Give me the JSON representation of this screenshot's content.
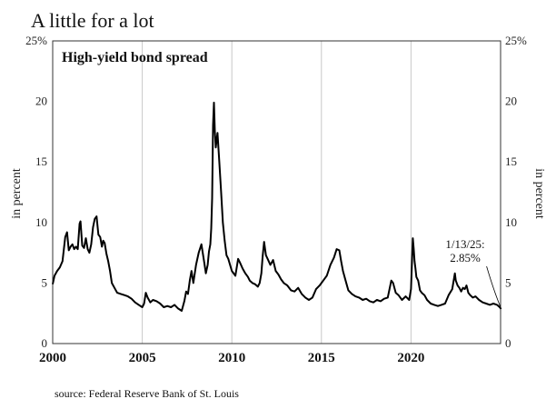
{
  "chart_data": {
    "type": "line",
    "title": "A little for a lot",
    "series_label": "High-yield bond spread",
    "ylabel_left": "in percent",
    "ylabel_right": "in percent",
    "xlim": [
      2000,
      2025
    ],
    "ylim": [
      0,
      25
    ],
    "y_ticks": [
      0,
      5,
      10,
      15,
      20,
      25
    ],
    "y_tick_labels": [
      "0",
      "5",
      "10",
      "15",
      "20",
      "25%"
    ],
    "x_ticks": [
      2000,
      2005,
      2010,
      2015,
      2020
    ],
    "x_tick_labels": [
      "2000",
      "2005",
      "2010",
      "2015",
      "2020"
    ],
    "grid": "vertical",
    "source": "source: Federal Reserve Bank of St. Louis",
    "annotation": {
      "line1": "1/13/25:",
      "line2": "2.85%",
      "x": 2025.03,
      "y": 2.85
    },
    "series": [
      {
        "name": "High-yield bond spread",
        "x": [
          2000.0,
          2000.1,
          2000.25,
          2000.4,
          2000.55,
          2000.7,
          2000.8,
          2000.9,
          2001.0,
          2001.1,
          2001.2,
          2001.3,
          2001.4,
          2001.5,
          2001.55,
          2001.65,
          2001.75,
          2001.85,
          2001.95,
          2002.05,
          2002.15,
          2002.25,
          2002.35,
          2002.45,
          2002.55,
          2002.65,
          2002.75,
          2002.82,
          2002.9,
          2003.0,
          2003.1,
          2003.2,
          2003.3,
          2003.45,
          2003.6,
          2003.8,
          2004.0,
          2004.2,
          2004.4,
          2004.6,
          2004.8,
          2005.0,
          2005.1,
          2005.2,
          2005.3,
          2005.45,
          2005.6,
          2005.8,
          2006.0,
          2006.2,
          2006.4,
          2006.6,
          2006.8,
          2007.0,
          2007.2,
          2007.35,
          2007.45,
          2007.55,
          2007.65,
          2007.75,
          2007.85,
          2008.0,
          2008.15,
          2008.3,
          2008.45,
          2008.55,
          2008.65,
          2008.72,
          2008.8,
          2008.85,
          2008.9,
          2008.95,
          2009.0,
          2009.05,
          2009.1,
          2009.2,
          2009.3,
          2009.4,
          2009.5,
          2009.6,
          2009.7,
          2009.8,
          2009.9,
          2010.0,
          2010.2,
          2010.35,
          2010.45,
          2010.6,
          2010.75,
          2010.9,
          2011.0,
          2011.15,
          2011.3,
          2011.45,
          2011.55,
          2011.65,
          2011.72,
          2011.8,
          2011.9,
          2012.0,
          2012.15,
          2012.3,
          2012.45,
          2012.6,
          2012.75,
          2012.9,
          2013.1,
          2013.3,
          2013.5,
          2013.7,
          2013.9,
          2014.1,
          2014.3,
          2014.5,
          2014.7,
          2014.9,
          2015.1,
          2015.3,
          2015.5,
          2015.7,
          2015.85,
          2016.0,
          2016.1,
          2016.2,
          2016.35,
          2016.5,
          2016.7,
          2016.9,
          2017.1,
          2017.3,
          2017.5,
          2017.7,
          2017.9,
          2018.1,
          2018.3,
          2018.5,
          2018.7,
          2018.9,
          2019.0,
          2019.15,
          2019.3,
          2019.5,
          2019.7,
          2019.9,
          2020.0,
          2020.1,
          2020.15,
          2020.2,
          2020.25,
          2020.3,
          2020.4,
          2020.5,
          2020.6,
          2020.75,
          2020.9,
          2021.1,
          2021.3,
          2021.5,
          2021.7,
          2021.9,
          2022.1,
          2022.3,
          2022.45,
          2022.5,
          2022.6,
          2022.7,
          2022.8,
          2022.9,
          2023.0,
          2023.1,
          2023.2,
          2023.3,
          2023.45,
          2023.6,
          2023.8,
          2024.0,
          2024.2,
          2024.4,
          2024.6,
          2024.8,
          2024.95,
          2025.03
        ],
        "values": [
          4.9,
          5.6,
          6.0,
          6.3,
          6.8,
          8.8,
          9.2,
          7.7,
          8.0,
          8.2,
          7.8,
          8.0,
          7.8,
          9.9,
          10.1,
          8.1,
          7.9,
          8.7,
          7.8,
          7.5,
          8.2,
          9.6,
          10.3,
          10.5,
          9.0,
          8.8,
          8.0,
          8.5,
          8.3,
          7.4,
          6.8,
          6.0,
          5.0,
          4.6,
          4.2,
          4.1,
          4.0,
          3.9,
          3.7,
          3.4,
          3.2,
          3.0,
          3.3,
          4.2,
          3.8,
          3.4,
          3.6,
          3.5,
          3.3,
          3.0,
          3.1,
          3.0,
          3.2,
          2.9,
          2.7,
          3.5,
          4.3,
          4.1,
          5.2,
          6.0,
          5.0,
          6.5,
          7.5,
          8.2,
          6.8,
          5.8,
          6.5,
          7.6,
          8.2,
          9.5,
          12.0,
          18.0,
          19.9,
          17.5,
          16.2,
          17.4,
          15.0,
          12.5,
          10.0,
          8.5,
          7.3,
          7.0,
          6.5,
          6.0,
          5.6,
          7.0,
          6.7,
          6.2,
          5.8,
          5.5,
          5.2,
          5.0,
          4.9,
          4.7,
          5.0,
          5.8,
          7.2,
          8.4,
          7.3,
          7.0,
          6.5,
          6.9,
          6.0,
          5.7,
          5.3,
          5.0,
          4.8,
          4.4,
          4.3,
          4.6,
          4.1,
          3.8,
          3.6,
          3.8,
          4.5,
          4.8,
          5.2,
          5.6,
          6.5,
          7.1,
          7.8,
          7.7,
          6.8,
          6.0,
          5.2,
          4.4,
          4.1,
          3.9,
          3.8,
          3.6,
          3.7,
          3.5,
          3.4,
          3.6,
          3.5,
          3.7,
          3.8,
          5.2,
          5.0,
          4.2,
          4.0,
          3.6,
          3.9,
          3.6,
          4.5,
          8.7,
          7.8,
          6.8,
          6.2,
          5.5,
          5.2,
          4.4,
          4.2,
          4.0,
          3.6,
          3.3,
          3.2,
          3.1,
          3.2,
          3.3,
          4.0,
          4.5,
          5.8,
          5.2,
          4.8,
          4.6,
          4.3,
          4.6,
          4.5,
          4.8,
          4.2,
          4.0,
          3.8,
          3.9,
          3.6,
          3.4,
          3.3,
          3.2,
          3.3,
          3.2,
          3.0,
          2.85
        ]
      }
    ]
  }
}
